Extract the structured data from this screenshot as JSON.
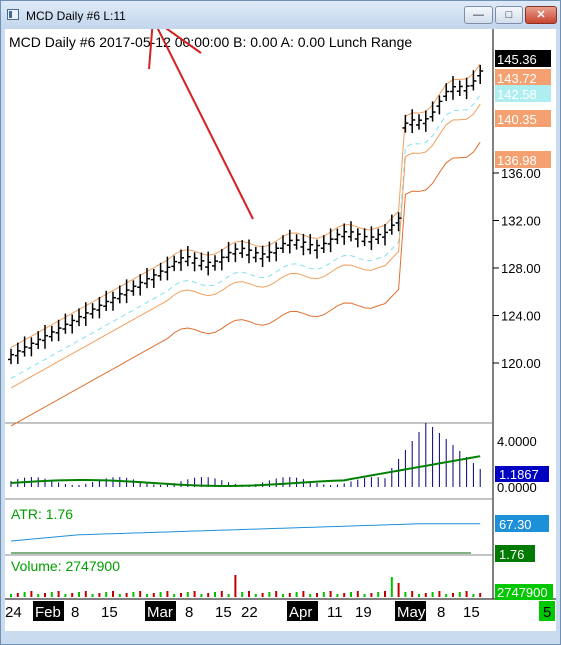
{
  "window": {
    "title": "MCD  Daily  #6  L:11",
    "min_glyph": "—",
    "max_glyph": "□",
    "close_glyph": "✕"
  },
  "chart": {
    "header": "MCD  Daily   #6  2017-05-12 00:00:00  B: 0.00  A: 0.00  Lunch Range"
  },
  "price_axis": {
    "ticks": [
      "136.00",
      "132.00",
      "128.00",
      "124.00",
      "120.00"
    ],
    "badges": [
      {
        "label": "145.36",
        "bg": "#000000",
        "fg": "#ffffff"
      },
      {
        "label": "143.72",
        "bg": "#f4a070",
        "fg": "#ffffff"
      },
      {
        "label": "142.58",
        "bg": "#aeeef0",
        "fg": "#ffffff"
      },
      {
        "label": "140.35",
        "bg": "#f4a070",
        "fg": "#ffffff"
      },
      {
        "label": "136.98",
        "bg": "#f4a070",
        "fg": "#ffffff"
      }
    ]
  },
  "macd": {
    "ticks": [
      "4.0000",
      "0.0000"
    ],
    "value": "1.1867",
    "badge_bg": "#0000c0"
  },
  "atr": {
    "label": "ATR: 1.76",
    "value": "67.30",
    "value_bg": "#1e90d8",
    "value2": "1.76",
    "value2_bg": "#007a00"
  },
  "volume": {
    "label": "Volume: 2747900",
    "value": "2747900",
    "value_bg": "#00c800"
  },
  "date_axis": {
    "labels": [
      {
        "text": "24",
        "hl": false
      },
      {
        "text": "Feb",
        "hl": true
      },
      {
        "text": "8",
        "hl": false
      },
      {
        "text": "15",
        "hl": false
      },
      {
        "text": "Mar",
        "hl": true
      },
      {
        "text": "8",
        "hl": false
      },
      {
        "text": "15",
        "hl": false
      },
      {
        "text": "22",
        "hl": false
      },
      {
        "text": "Apr",
        "hl": true
      },
      {
        "text": "11",
        "hl": false
      },
      {
        "text": "19",
        "hl": false
      },
      {
        "text": "May",
        "hl": true
      },
      {
        "text": "8",
        "hl": false
      },
      {
        "text": "15",
        "hl": false
      }
    ],
    "corner": "5",
    "corner_bg": "#00c800"
  },
  "annotation": {
    "color": "#d42020"
  },
  "colors": {
    "bars": "#000000",
    "envelope_outer": "#e07030",
    "envelope_mid": "#f0a060",
    "dash": "#80e0f0",
    "macd_hist": "#000080",
    "macd_signal_red": "#c00000",
    "macd_signal_green": "#008000",
    "atr_line": "#1e90d8",
    "atr_baseline": "#006400",
    "volume_up": "#00c000",
    "volume_down": "#c00000"
  }
}
